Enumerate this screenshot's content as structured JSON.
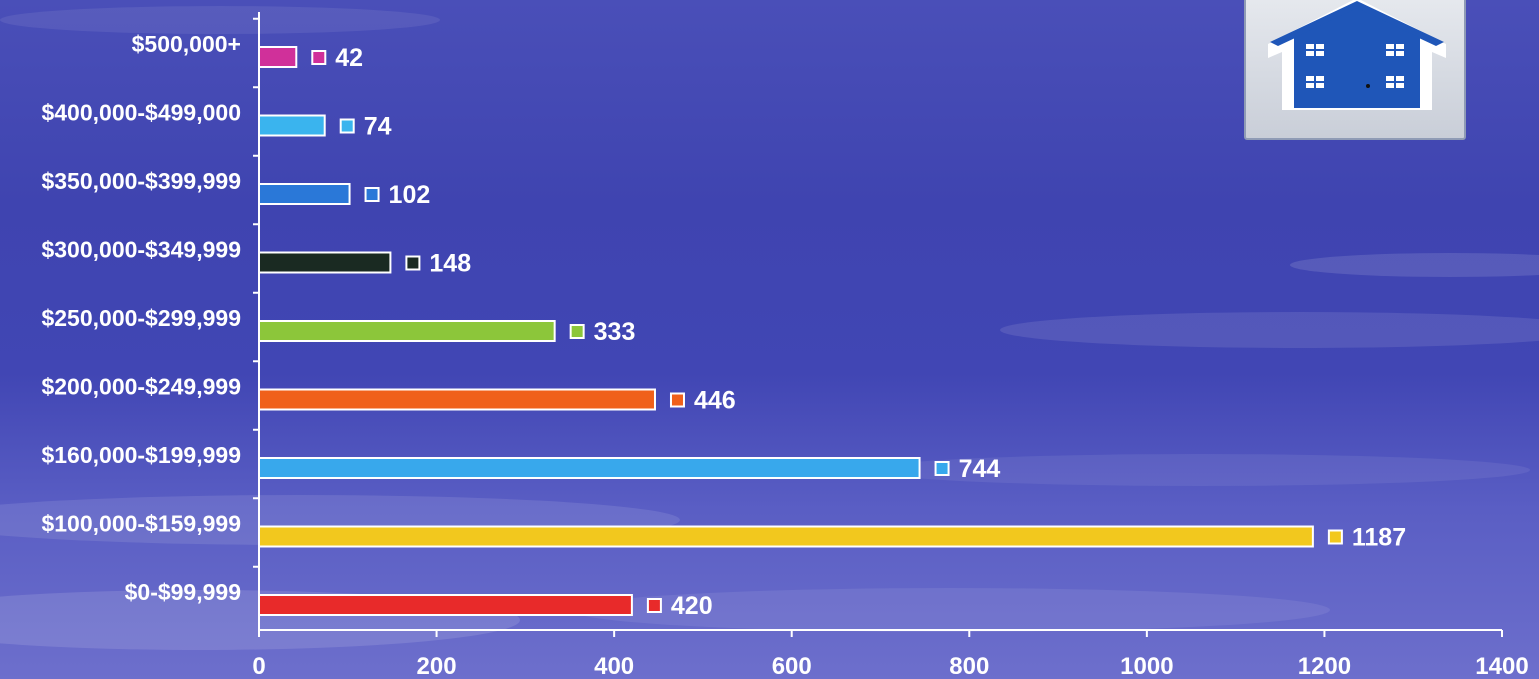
{
  "chart_data": {
    "type": "bar",
    "orientation": "horizontal",
    "categories": [
      "$500,000+",
      "$400,000-$499,000",
      "$350,000-$399,999",
      "$300,000-$349,999",
      "$250,000-$299,999",
      "$200,000-$249,999",
      "$160,000-$199,999",
      "$100,000-$159,999",
      "$0-$99,999"
    ],
    "values": [
      42,
      74,
      102,
      148,
      333,
      446,
      744,
      1187,
      420
    ],
    "colors": [
      "#d0309a",
      "#3ab4ee",
      "#2a78d8",
      "#1a2a22",
      "#8cc63a",
      "#f0601a",
      "#38a8ec",
      "#f2c81e",
      "#e82a2a"
    ],
    "xlim": [
      0,
      1400
    ],
    "xticks": [
      "0",
      "200",
      "400",
      "600",
      "800",
      "1000",
      "1200",
      "1400"
    ],
    "title": "",
    "xlabel": "",
    "ylabel": "",
    "grid": false,
    "legend": false
  },
  "logo": {
    "icon": "house-icon",
    "color": "#1f56b8"
  }
}
